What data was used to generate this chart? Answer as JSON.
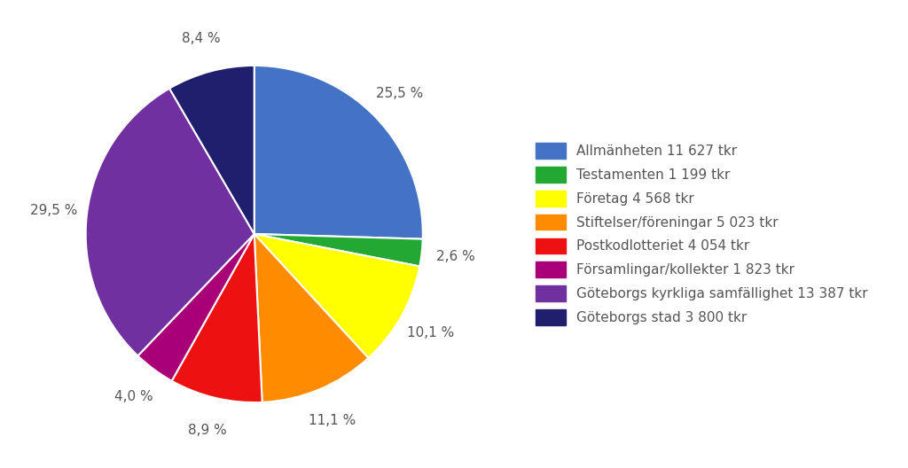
{
  "labels": [
    "Allmänheten 11 627 tkr",
    "Testamenten 1 199 tkr",
    "Företag 4 568 tkr",
    "Stiftelser/föreningar 5 023 tkr",
    "Postkodlotteriet 4 054 tkr",
    "Församlingar/kollekter 1 823 tkr",
    "Göteborgs kyrkliga samfällighet 13 387 tkr",
    "Göteborgs stad 3 800 tkr"
  ],
  "values": [
    25.5,
    2.6,
    10.1,
    11.1,
    8.9,
    4.0,
    29.5,
    8.4
  ],
  "colors": [
    "#4472C4",
    "#22A833",
    "#FFFF00",
    "#FF8C00",
    "#EE1111",
    "#AA0077",
    "#7030A0",
    "#1F1F6E"
  ],
  "pct_labels": [
    "25,5 %",
    "2,6 %",
    "10,1 %",
    "11,1 %",
    "8,9 %",
    "4,0 %",
    "29,5 %",
    "8,4 %"
  ],
  "startangle": 90,
  "background_color": "#FFFFFF",
  "text_color": "#555555",
  "label_fontsize": 11,
  "legend_fontsize": 11
}
